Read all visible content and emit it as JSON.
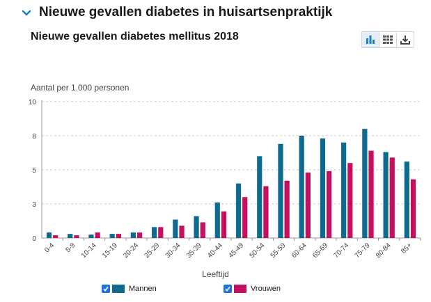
{
  "section": {
    "title": "Nieuwe gevallen diabetes in huisartsenpraktijk",
    "icon": "chevron-down-icon"
  },
  "toolbar": {
    "buttons": [
      {
        "name": "chart-view-button",
        "icon": "bar-chart-icon",
        "active": true
      },
      {
        "name": "table-view-button",
        "icon": "table-icon",
        "active": false
      },
      {
        "name": "download-button",
        "icon": "download-icon",
        "active": false
      }
    ]
  },
  "colors": {
    "mannen": "#0f6a8f",
    "vrouwen": "#c4105e",
    "accent": "#1b74e4",
    "chevron": "#1a82c6"
  },
  "chart_data": {
    "type": "bar",
    "title": "Nieuwe gevallen diabetes mellitus 2018",
    "ylabel": "Aantal per 1.000 personen",
    "xlabel": "Leeftijd",
    "ylim": [
      0,
      10
    ],
    "yticks": [
      0,
      2.5,
      5,
      7.5,
      10
    ],
    "ytick_labels": [
      "0",
      "3",
      "5",
      "8",
      "10"
    ],
    "grid": true,
    "legend_position": "bottom",
    "categories": [
      "0-4",
      "5-9",
      "10-14",
      "15-19",
      "20-24",
      "25-29",
      "30-34",
      "35-39",
      "40-44",
      "45-49",
      "50-54",
      "55-59",
      "60-64",
      "65-69",
      "70-74",
      "75-79",
      "80-84",
      "85+"
    ],
    "series": [
      {
        "name": "Mannen",
        "values": [
          0.4,
          0.3,
          0.25,
          0.3,
          0.4,
          0.8,
          1.35,
          1.6,
          2.6,
          4.0,
          6.0,
          6.9,
          7.5,
          7.3,
          7.0,
          8.0,
          6.3,
          5.6
        ]
      },
      {
        "name": "Vrouwen",
        "values": [
          0.2,
          0.2,
          0.4,
          0.3,
          0.4,
          0.8,
          0.9,
          1.15,
          1.95,
          3.0,
          3.8,
          4.2,
          4.8,
          4.9,
          5.5,
          6.4,
          5.9,
          4.3
        ]
      }
    ]
  }
}
